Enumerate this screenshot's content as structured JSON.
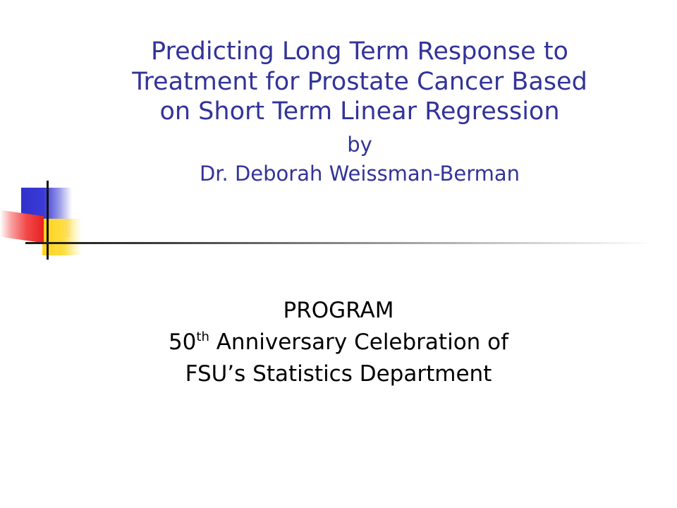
{
  "slide": {
    "title": {
      "lines": [
        "Predicting Long Term Response to",
        "Treatment for Prostate Cancer Based",
        "on Short Term Linear Regression"
      ],
      "by": "by",
      "author": "Dr. Deborah Weissman-Berman"
    },
    "subtitle": {
      "line1": "PROGRAM",
      "line2_number": "50",
      "line2_suffix": "th",
      "line2_rest": " Anniversary Celebration of",
      "line3": "FSU’s Statistics Department"
    },
    "colors": {
      "title": "#333399",
      "subtitle": "#000000",
      "ornament_blue": "#3131cc",
      "ornament_yellow": "#ffd21a",
      "ornament_red": "#e82020"
    }
  }
}
